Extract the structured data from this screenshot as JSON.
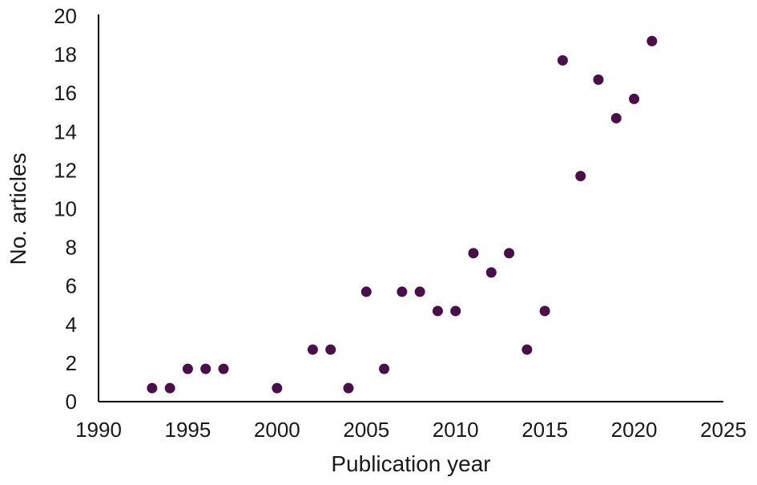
{
  "chart_data": {
    "type": "scatter",
    "title": "",
    "xlabel": "Publication year",
    "ylabel": "No. articles",
    "xlim": [
      1990,
      2025
    ],
    "ylim": [
      0,
      20
    ],
    "x_ticks": [
      1990,
      1995,
      2000,
      2005,
      2010,
      2015,
      2020,
      2025
    ],
    "y_ticks": [
      0,
      2,
      4,
      6,
      8,
      10,
      12,
      14,
      16,
      18,
      20
    ],
    "grid": false,
    "legend": "none",
    "marker_color": "#4a0f4a",
    "points": [
      {
        "x": 1993,
        "y": 1
      },
      {
        "x": 1994,
        "y": 1
      },
      {
        "x": 1995,
        "y": 2
      },
      {
        "x": 1996,
        "y": 2
      },
      {
        "x": 1997,
        "y": 2
      },
      {
        "x": 2000,
        "y": 1
      },
      {
        "x": 2002,
        "y": 3
      },
      {
        "x": 2003,
        "y": 3
      },
      {
        "x": 2004,
        "y": 1
      },
      {
        "x": 2005,
        "y": 6
      },
      {
        "x": 2006,
        "y": 2
      },
      {
        "x": 2007,
        "y": 6
      },
      {
        "x": 2008,
        "y": 6
      },
      {
        "x": 2009,
        "y": 5
      },
      {
        "x": 2010,
        "y": 5
      },
      {
        "x": 2011,
        "y": 8
      },
      {
        "x": 2012,
        "y": 7
      },
      {
        "x": 2013,
        "y": 8
      },
      {
        "x": 2014,
        "y": 3
      },
      {
        "x": 2015,
        "y": 5
      },
      {
        "x": 2016,
        "y": 18
      },
      {
        "x": 2017,
        "y": 12
      },
      {
        "x": 2018,
        "y": 17
      },
      {
        "x": 2019,
        "y": 15
      },
      {
        "x": 2020,
        "y": 16
      },
      {
        "x": 2021,
        "y": 19
      }
    ]
  }
}
